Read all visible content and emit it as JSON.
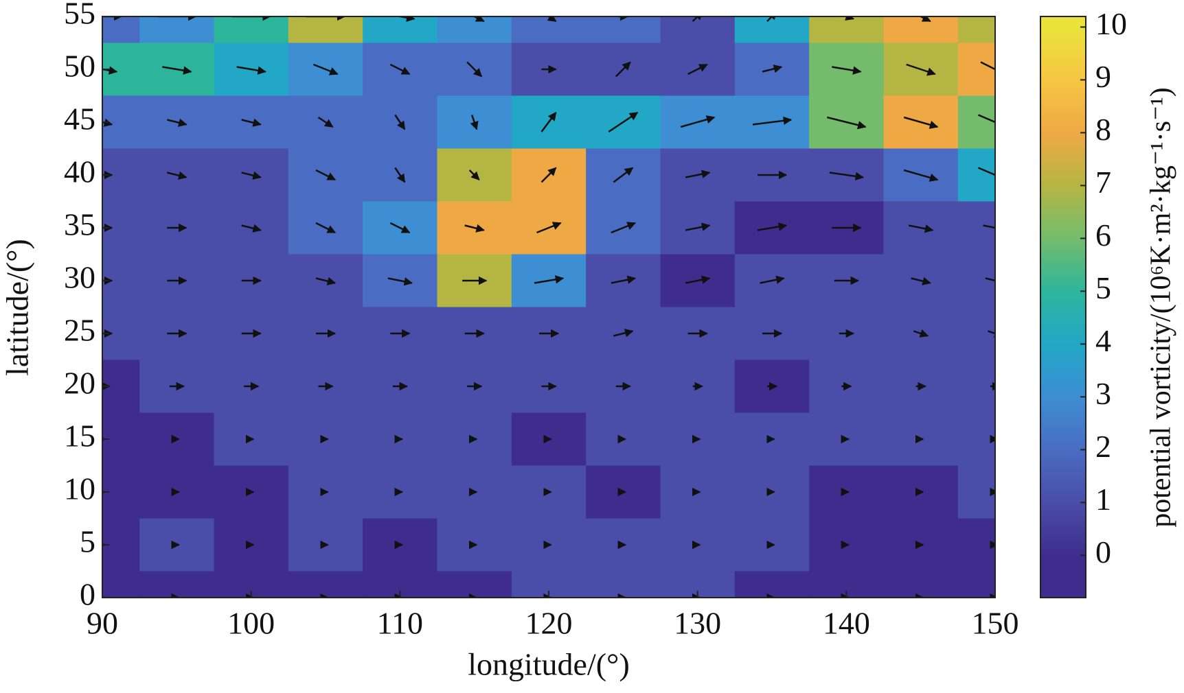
{
  "chart_data": {
    "type": "contour",
    "xlabel": "longitude/(°)",
    "ylabel": "latitude/(°)",
    "colorbar_label": "potential vorticity/(10⁶K·m²·kg⁻¹·s⁻¹)",
    "x": [
      90,
      95,
      100,
      105,
      110,
      115,
      120,
      125,
      130,
      135,
      140,
      145,
      150
    ],
    "y": [
      55,
      50,
      45,
      40,
      35,
      30,
      25,
      20,
      15,
      10,
      5,
      0
    ],
    "xlim": [
      90,
      150
    ],
    "ylim": [
      0,
      55
    ],
    "xticks": [
      90,
      100,
      110,
      120,
      130,
      140,
      150
    ],
    "yticks": [
      0,
      5,
      10,
      15,
      20,
      25,
      30,
      35,
      40,
      45,
      50,
      55
    ],
    "clim": [
      -0.8,
      10.2
    ],
    "cticks": [
      0,
      1,
      2,
      3,
      4,
      5,
      6,
      7,
      8,
      9,
      10
    ],
    "colormap": [
      "#3e2d8c",
      "#4a4ea8",
      "#4a6cc2",
      "#3d8ed3",
      "#22a8c6",
      "#2db59c",
      "#74bc6c",
      "#b5b544",
      "#eea944",
      "#f6c643",
      "#ebe33c"
    ],
    "values": [
      [
        2,
        3,
        5,
        7,
        4,
        3,
        2,
        2,
        1,
        4,
        7,
        8,
        7
      ],
      [
        5,
        5,
        4,
        3,
        2,
        2,
        1,
        1,
        1,
        2,
        6,
        7,
        8
      ],
      [
        2,
        2,
        2,
        2,
        2,
        3,
        4,
        4,
        3,
        3,
        6,
        8,
        6
      ],
      [
        1,
        1,
        1,
        2,
        2,
        7,
        8,
        2,
        1,
        1,
        1,
        2,
        4
      ],
      [
        1,
        1,
        1,
        2,
        3,
        8,
        8,
        2,
        1,
        0,
        0,
        1,
        1
      ],
      [
        1,
        1,
        1,
        1,
        2,
        7,
        3,
        1,
        0,
        1,
        1,
        1,
        1
      ],
      [
        1,
        1,
        1,
        1,
        1,
        1,
        1,
        1,
        1,
        1,
        1,
        1,
        1
      ],
      [
        0,
        1,
        1,
        1,
        1,
        1,
        1,
        1,
        1,
        0,
        1,
        1,
        1
      ],
      [
        0,
        0,
        1,
        1,
        1,
        1,
        0,
        1,
        1,
        1,
        1,
        1,
        1
      ],
      [
        0,
        0,
        0,
        1,
        1,
        1,
        1,
        0,
        1,
        1,
        0,
        0,
        1
      ],
      [
        0,
        1,
        0,
        1,
        0,
        1,
        1,
        1,
        1,
        1,
        0,
        0,
        0
      ],
      [
        0,
        0,
        0,
        0,
        0,
        0,
        1,
        1,
        1,
        0,
        0,
        0,
        0
      ]
    ],
    "u": [
      [
        8,
        8,
        8,
        8,
        6,
        4,
        3,
        2,
        2,
        2,
        3,
        4,
        4
      ],
      [
        6,
        6,
        6,
        5,
        4,
        3,
        3,
        3,
        4,
        4,
        6,
        6,
        6
      ],
      [
        4,
        4,
        4,
        3,
        2,
        1,
        3,
        6,
        7,
        8,
        8,
        7,
        7
      ],
      [
        4,
        4,
        4,
        4,
        2,
        2,
        3,
        4,
        5,
        6,
        7,
        7,
        7
      ],
      [
        4,
        4,
        4,
        4,
        4,
        4,
        5,
        5,
        5,
        6,
        6,
        5,
        5
      ],
      [
        4,
        4,
        4,
        4,
        5,
        5,
        6,
        5,
        5,
        5,
        5,
        4,
        4
      ],
      [
        4,
        4,
        4,
        4,
        4,
        4,
        4,
        4,
        4,
        4,
        3,
        3,
        3
      ],
      [
        3,
        3,
        3,
        3,
        3,
        3,
        3,
        3,
        2,
        2,
        2,
        2,
        2
      ],
      [
        1,
        1,
        1,
        1,
        1,
        1,
        1,
        1,
        1,
        1,
        1,
        1,
        1
      ],
      [
        1,
        1,
        1,
        1,
        1,
        1,
        1,
        1,
        1,
        1,
        1,
        1,
        1
      ],
      [
        1,
        1,
        1,
        1,
        1,
        1,
        1,
        1,
        1,
        1,
        1,
        1,
        1
      ],
      [
        1,
        1,
        1,
        1,
        1,
        1,
        1,
        1,
        1,
        1,
        1,
        1,
        1
      ]
    ],
    "v": [
      [
        0,
        0,
        0,
        0,
        -1,
        -2,
        -2,
        0,
        2,
        2,
        -1,
        -2,
        -3
      ],
      [
        -1,
        -1,
        -1,
        -2,
        -2,
        -3,
        0,
        3,
        2,
        1,
        -1,
        -2,
        -3
      ],
      [
        -1,
        -1,
        -1,
        -2,
        -3,
        -3,
        4,
        4,
        2,
        1,
        -2,
        -2,
        -3
      ],
      [
        0,
        -1,
        -1,
        -2,
        -3,
        -2,
        3,
        3,
        1,
        0,
        -1,
        -2,
        -3
      ],
      [
        0,
        0,
        -1,
        -2,
        -2,
        -1,
        2,
        2,
        1,
        1,
        0,
        -1,
        -1
      ],
      [
        0,
        0,
        0,
        -1,
        -1,
        0,
        1,
        1,
        1,
        1,
        0,
        -1,
        -1
      ],
      [
        0,
        0,
        0,
        0,
        0,
        0,
        0,
        1,
        0,
        0,
        0,
        -1,
        -1
      ],
      [
        0,
        0,
        0,
        0,
        0,
        0,
        0,
        0,
        0,
        0,
        0,
        0,
        0
      ],
      [
        0,
        0,
        0,
        0,
        0,
        0,
        0,
        0,
        0,
        0,
        0,
        0,
        0
      ],
      [
        0,
        0,
        0,
        0,
        0,
        0,
        0,
        0,
        0,
        0,
        0,
        0,
        0
      ],
      [
        0,
        0,
        0,
        0,
        0,
        0,
        0,
        0,
        0,
        0,
        0,
        0,
        0
      ],
      [
        0,
        0,
        0,
        0,
        0,
        0,
        0,
        0,
        0,
        0,
        0,
        0,
        0
      ]
    ]
  }
}
